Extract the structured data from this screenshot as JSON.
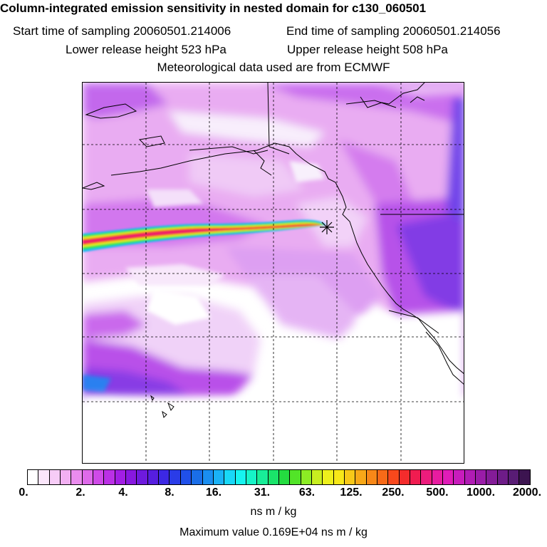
{
  "title": "Column-integrated emission sensitivity in nested domain for c130_060501",
  "start_sampling": "Start time of sampling 20060501.214006",
  "end_sampling": "End time of sampling 20060501.214056",
  "lower_release": "Lower release height  523 hPa",
  "upper_release": "Upper release height  508 hPa",
  "met_data": "Meteorological data used are from ECMWF",
  "colorbar": {
    "tick_labels": [
      "0.",
      "2.",
      "4.",
      "8.",
      "16.",
      "31.",
      "63.",
      "125.",
      "250.",
      "500.",
      "1000.",
      "2000."
    ],
    "units": "ns m / kg",
    "colors": [
      "#ffffff",
      "#fbe6fb",
      "#f7ccf7",
      "#f2b0f2",
      "#ea8cee",
      "#de6aea",
      "#cf4ae8",
      "#bb30e6",
      "#a21ee4",
      "#8818e0",
      "#6e1ade",
      "#561ee0",
      "#3c28e4",
      "#2a3ce8",
      "#2050ea",
      "#1a6ee8",
      "#1a8ef0",
      "#1ab2f6",
      "#18d8f8",
      "#16f4f0",
      "#16f4c8",
      "#18ee98",
      "#1ae46a",
      "#24dc40",
      "#52e428",
      "#8cec24",
      "#c8ee20",
      "#eef01c",
      "#f8e818",
      "#f8c818",
      "#f8a818",
      "#f88818",
      "#f86a18",
      "#f8481c",
      "#f42c2c",
      "#f01c50",
      "#ec1c7c",
      "#e81ca0",
      "#e01cb8",
      "#c81cbc",
      "#b01cb4",
      "#9a1ca8",
      "#841c98",
      "#6e1c88",
      "#581c74",
      "#3c1450"
    ]
  },
  "max_value": "Maximum value  0.169E+04 ns m / kg",
  "colors": {
    "ocean_sensitivity": "#c040f0",
    "plume_core": "#f0167a",
    "plume_edge": "#18d0f8"
  }
}
